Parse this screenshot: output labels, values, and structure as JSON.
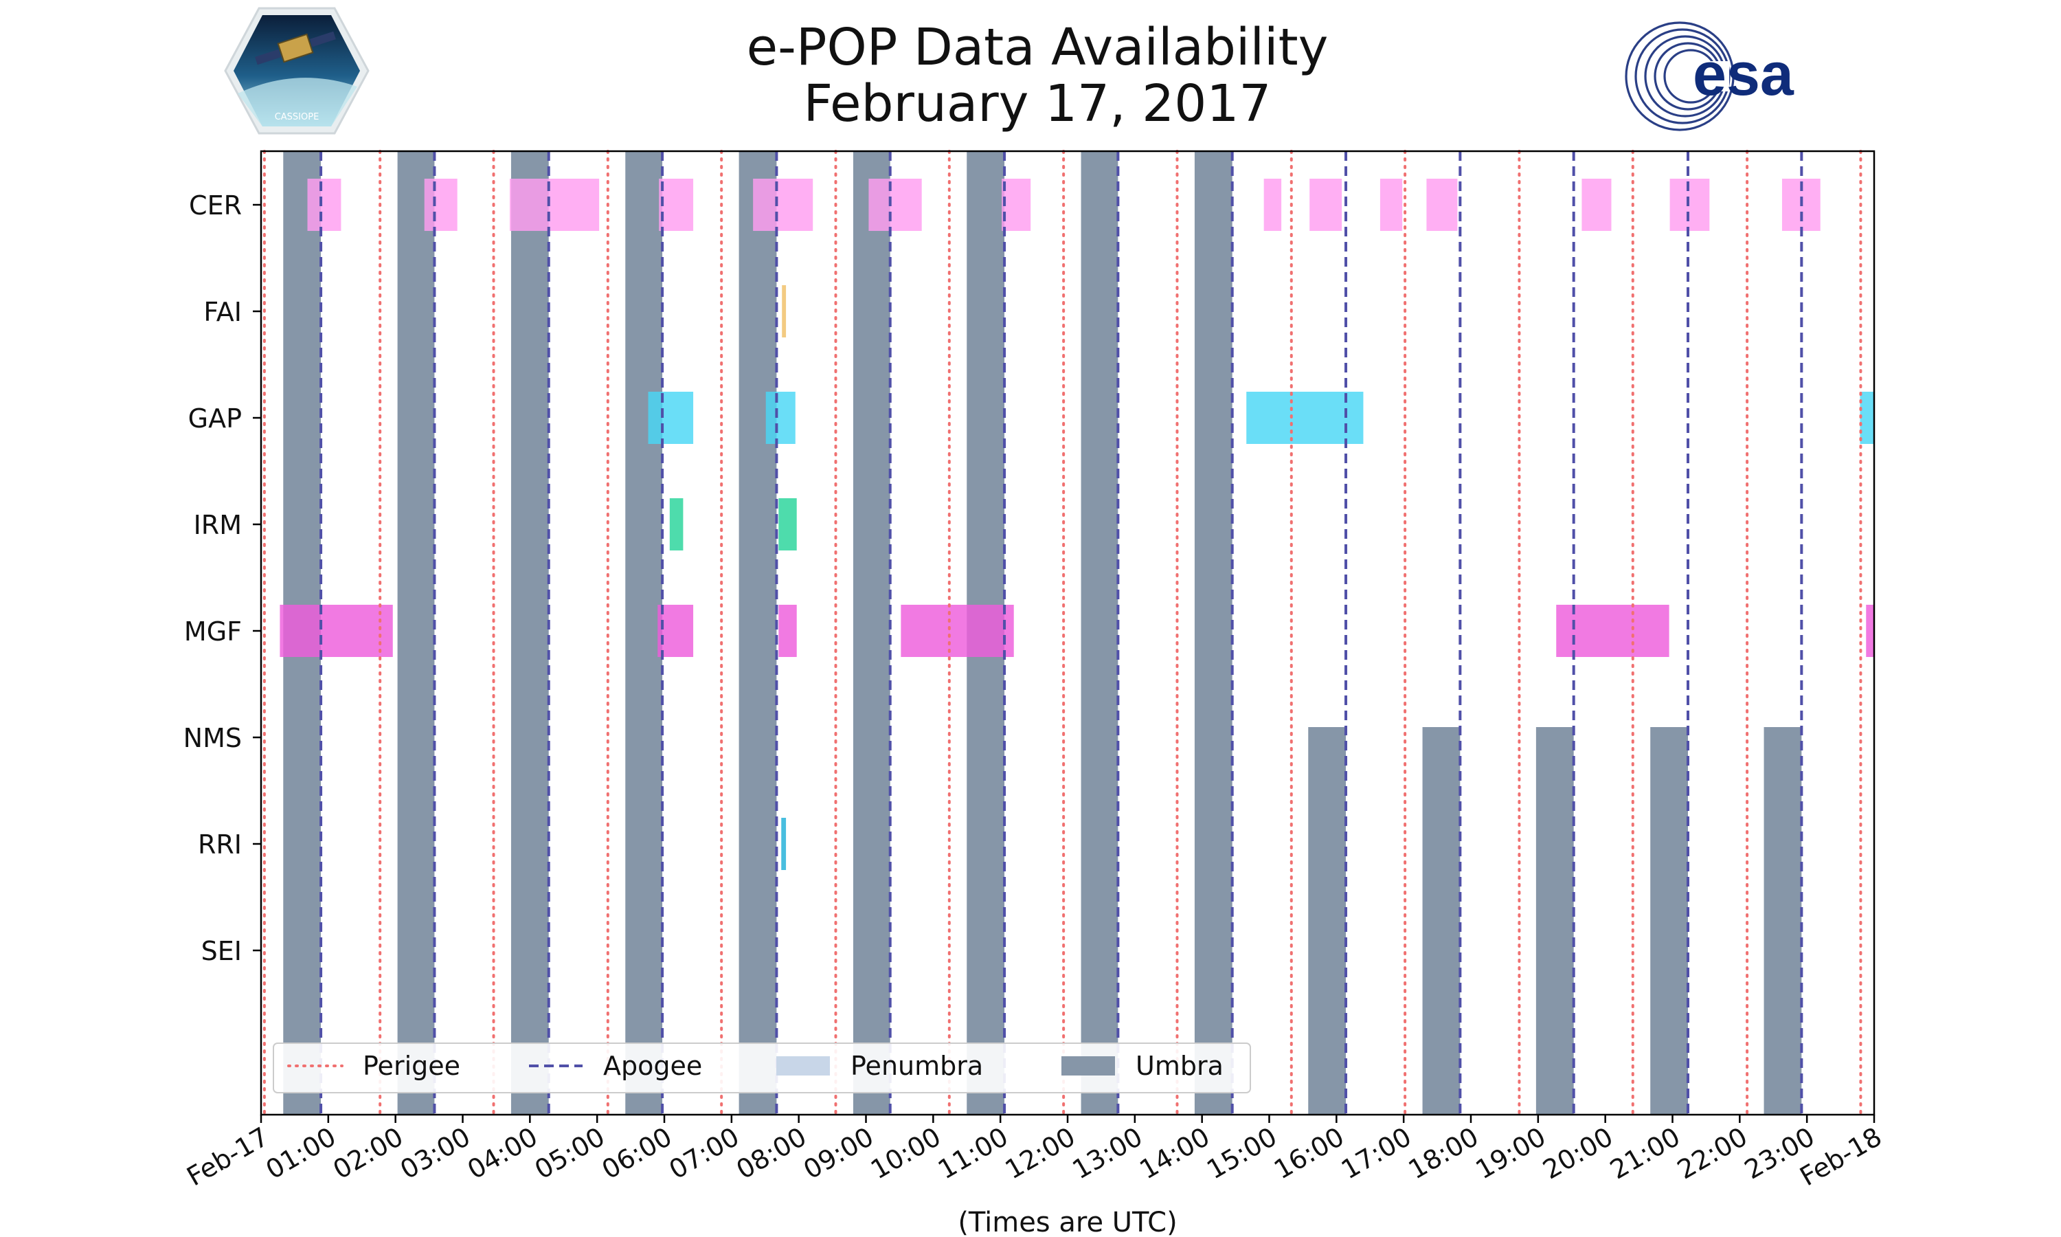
{
  "title_line1": "e-POP Data Availability",
  "title_line2": "February 17, 2017",
  "logos": {
    "mission_text": "CASSIOPE",
    "agency_text": "esa"
  },
  "chart_data": {
    "type": "timeline",
    "xlabel": "(Times are UTC)",
    "x_range_hours": [
      0,
      24
    ],
    "x_tick_labels": [
      "Feb-17",
      "01:00",
      "02:00",
      "03:00",
      "04:00",
      "05:00",
      "06:00",
      "07:00",
      "08:00",
      "09:00",
      "10:00",
      "11:00",
      "12:00",
      "13:00",
      "14:00",
      "15:00",
      "16:00",
      "17:00",
      "18:00",
      "19:00",
      "20:00",
      "21:00",
      "22:00",
      "23:00",
      "Feb-18"
    ],
    "instruments": [
      "CER",
      "FAI",
      "GAP",
      "IRM",
      "MGF",
      "NMS",
      "RRI",
      "SEI"
    ],
    "colors": {
      "CER": "#ff9df0",
      "FAI": "#f0bf66",
      "GAP": "#49d7f5",
      "IRM": "#27d49a",
      "MGF": "#ee5ddc",
      "NMS": "#999999",
      "RRI": "#20b0d8",
      "SEI": "#999999",
      "perigee": "#f07070",
      "apogee": "#5050a8",
      "penumbra": "#c8d6e8",
      "umbra": "#8696a8"
    },
    "legend": [
      {
        "key": "perigee",
        "label": "Perigee"
      },
      {
        "key": "apogee",
        "label": "Apogee"
      },
      {
        "key": "penumbra",
        "label": "Penumbra"
      },
      {
        "key": "umbra",
        "label": "Umbra"
      }
    ],
    "legend_location": "lower-left",
    "perigee_hours": [
      0.05,
      1.77,
      3.46,
      5.16,
      6.85,
      8.55,
      10.24,
      11.94,
      13.63,
      15.33,
      17.02,
      18.72,
      20.41,
      22.11,
      23.8
    ],
    "apogee_hours": [
      0.89,
      2.58,
      4.28,
      5.97,
      7.67,
      9.36,
      11.06,
      12.75,
      14.45,
      16.14,
      17.84,
      19.53,
      21.23,
      22.92
    ],
    "umbra_segments": [
      {
        "start": 0.33,
        "end": 0.89,
        "rows": "all"
      },
      {
        "start": 2.03,
        "end": 2.58,
        "rows": "all"
      },
      {
        "start": 3.72,
        "end": 4.28,
        "rows": "all"
      },
      {
        "start": 5.42,
        "end": 5.97,
        "rows": "all"
      },
      {
        "start": 7.11,
        "end": 7.67,
        "rows": "all"
      },
      {
        "start": 8.81,
        "end": 9.36,
        "rows": "all"
      },
      {
        "start": 10.5,
        "end": 11.06,
        "rows": "all"
      },
      {
        "start": 12.2,
        "end": 12.75,
        "rows": "all"
      },
      {
        "start": 13.89,
        "end": 14.45,
        "rows": "all"
      },
      {
        "start": 15.58,
        "end": 16.14,
        "rows": "partial"
      },
      {
        "start": 17.28,
        "end": 17.84,
        "rows": "partial"
      },
      {
        "start": 18.97,
        "end": 19.53,
        "rows": "partial"
      },
      {
        "start": 20.67,
        "end": 21.23,
        "rows": "partial"
      },
      {
        "start": 22.36,
        "end": 22.92,
        "rows": "partial"
      }
    ],
    "availability": {
      "CER": [
        [
          0.69,
          1.19
        ],
        [
          2.43,
          2.92
        ],
        [
          3.7,
          5.03
        ],
        [
          5.92,
          6.43
        ],
        [
          7.32,
          8.21
        ],
        [
          9.04,
          9.83
        ],
        [
          11.02,
          11.45
        ],
        [
          14.92,
          15.18
        ],
        [
          15.6,
          16.08
        ],
        [
          16.65,
          16.98
        ],
        [
          17.34,
          17.8
        ],
        [
          19.65,
          20.09
        ],
        [
          20.96,
          21.55
        ],
        [
          22.63,
          23.2
        ]
      ],
      "FAI": [
        [
          7.75,
          7.81
        ]
      ],
      "GAP": [
        [
          5.76,
          6.43
        ],
        [
          7.51,
          7.95
        ],
        [
          14.66,
          16.4
        ],
        [
          23.79,
          24.0
        ]
      ],
      "IRM": [
        [
          6.08,
          6.28
        ],
        [
          7.7,
          7.97
        ]
      ],
      "MGF": [
        [
          0.28,
          1.96
        ],
        [
          5.9,
          6.43
        ],
        [
          7.7,
          7.97
        ],
        [
          9.52,
          11.2
        ],
        [
          19.27,
          20.95
        ],
        [
          23.88,
          24.0
        ]
      ],
      "NMS": [],
      "RRI": [
        [
          7.74,
          7.81
        ]
      ],
      "SEI": []
    }
  }
}
